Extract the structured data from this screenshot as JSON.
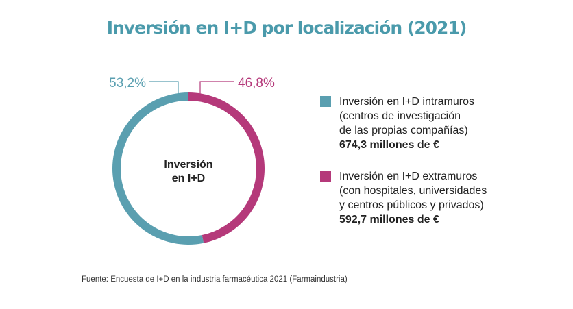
{
  "title": "Inversión en I+D por localización (2021)",
  "colors": {
    "title": "#4a9aab",
    "intramuros": "#5a9fb0",
    "extramuros": "#b5397a"
  },
  "chart_data": {
    "type": "pie",
    "donut": true,
    "center_label": [
      "Inversión",
      "en I+D"
    ],
    "slices": [
      {
        "label_lines": [
          "Inversión en I+D intramuros",
          "(centros de investigación",
          "de las propias compañías)"
        ],
        "amount": "674,3 millones de €",
        "value": 674.3,
        "percent": 53.2,
        "percent_label": "53,2%",
        "color": "#5a9fb0"
      },
      {
        "label_lines": [
          "Inversión en I+D extramuros",
          "(con hospitales, universidades",
          "y centros públicos y privados)"
        ],
        "amount": "592,7 millones de €",
        "value": 592.7,
        "percent": 46.8,
        "percent_label": "46,8%",
        "color": "#b5397a"
      }
    ]
  },
  "source": "Fuente: Encuesta de I+D en la industria farmacéutica 2021 (Farmaindustria)"
}
